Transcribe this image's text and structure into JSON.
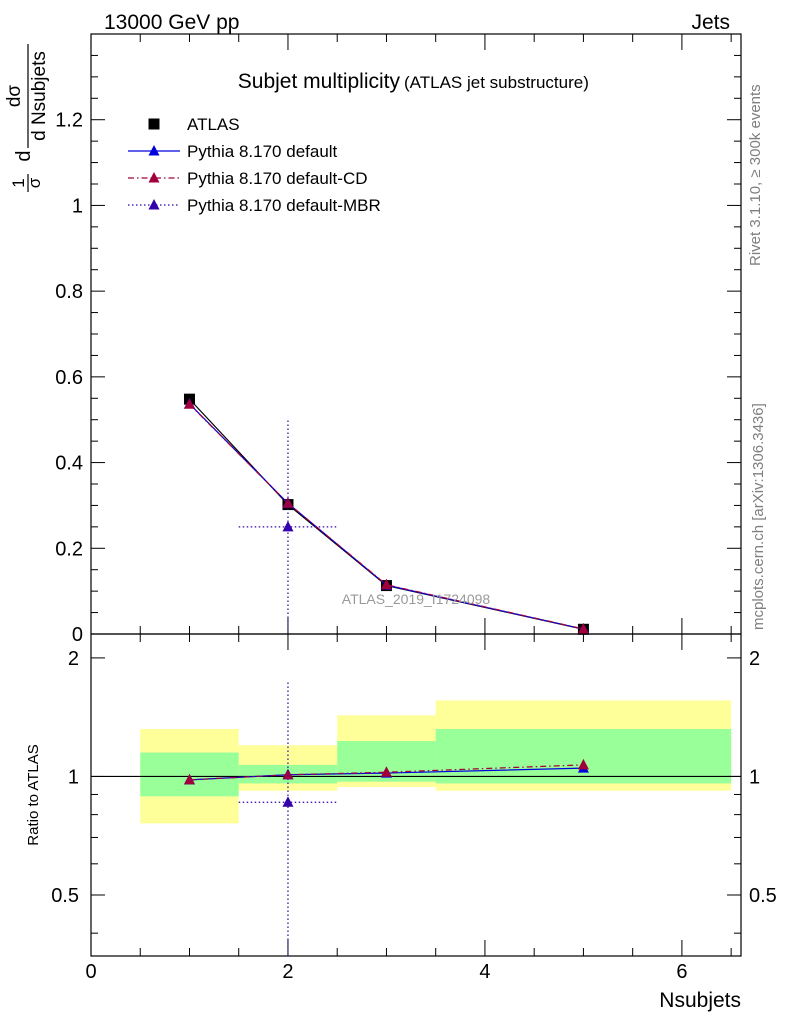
{
  "header": {
    "left": "13000 GeV pp",
    "right": "Jets"
  },
  "side": {
    "rivet": "Rivet 3.1.10, ≥ 300k events",
    "mcplots": "mcplots.cern.ch [arXiv:1306.3436]"
  },
  "watermark": "ATLAS_2019_I1724098",
  "chart_data": [
    {
      "type": "scatter",
      "title": "Subjet multiplicity",
      "subtitle": "(ATLAS jet substructure)",
      "ylabel": {
        "frac": "1",
        "frac_den": "σ",
        "d": "d",
        "num": "dσ",
        "den": "d Nsubjets"
      },
      "xlabel": "Nsubjets",
      "xlim": [
        0,
        6.6
      ],
      "ylim": [
        0,
        1.4
      ],
      "yticks": [
        0,
        0.2,
        0.4,
        0.6,
        0.8,
        1,
        1.2
      ],
      "ytick_labels": [
        "0",
        "0.2",
        "0.4",
        "0.6",
        "0.8",
        "1",
        "1.2"
      ],
      "legend_position": "top-left",
      "series": [
        {
          "name": "ATLAS",
          "marker": "square",
          "color": "#000000",
          "points": [
            {
              "x": 1,
              "y": 0.548
            },
            {
              "x": 2,
              "y": 0.302
            },
            {
              "x": 3,
              "y": 0.113
            },
            {
              "x": 5,
              "y": 0.011
            }
          ]
        },
        {
          "name": "Pythia 8.170 default",
          "marker": "triangle",
          "color": "#0000dd",
          "line": "solid",
          "points": [
            {
              "x": 1,
              "y": 0.537
            },
            {
              "x": 2,
              "y": 0.305
            },
            {
              "x": 3,
              "y": 0.114
            },
            {
              "x": 5,
              "y": 0.0115
            }
          ]
        },
        {
          "name": "Pythia 8.170 default-CD",
          "marker": "triangle",
          "color": "#a0003c",
          "line": "dashdot",
          "points": [
            {
              "x": 1,
              "y": 0.536
            },
            {
              "x": 2,
              "y": 0.305
            },
            {
              "x": 3,
              "y": 0.115
            },
            {
              "x": 5,
              "y": 0.0118
            }
          ]
        },
        {
          "name": "Pythia 8.170 default-MBR",
          "marker": "triangle",
          "color": "#3300aa",
          "line": "dotted",
          "points": [
            {
              "x": 2,
              "y": 0.25,
              "xerr": [
                1.5,
                2.5
              ],
              "yerr": [
                0.0,
                0.5
              ]
            }
          ]
        }
      ]
    },
    {
      "type": "scatter",
      "ylabel": "Ratio to ATLAS",
      "xlabel": "Nsubjets",
      "xlim": [
        0,
        6.6
      ],
      "ylim": [
        0.35,
        2.3
      ],
      "yticks": [
        0.5,
        1,
        2
      ],
      "ytick_labels": [
        "0.5",
        "1",
        "2"
      ],
      "xticks": [
        0,
        2,
        4,
        6
      ],
      "xtick_labels": [
        "0",
        "2",
        "4",
        "6"
      ],
      "bands": [
        {
          "x0": 0.5,
          "x1": 1.5,
          "inner": [
            0.89,
            1.15
          ],
          "outer": [
            0.76,
            1.32
          ]
        },
        {
          "x0": 1.5,
          "x1": 2.5,
          "inner": [
            0.96,
            1.07
          ],
          "outer": [
            0.92,
            1.2
          ]
        },
        {
          "x0": 2.5,
          "x1": 3.5,
          "inner": [
            0.97,
            1.23
          ],
          "outer": [
            0.94,
            1.43
          ]
        },
        {
          "x0": 3.5,
          "x1": 6.5,
          "inner": [
            0.96,
            1.32
          ],
          "outer": [
            0.92,
            1.56
          ]
        }
      ],
      "series": [
        {
          "name": "Pythia 8.170 default",
          "color": "#0000dd",
          "line": "solid",
          "points": [
            {
              "x": 1,
              "y": 0.98
            },
            {
              "x": 2,
              "y": 1.01
            },
            {
              "x": 3,
              "y": 1.02
            },
            {
              "x": 5,
              "y": 1.05
            }
          ]
        },
        {
          "name": "Pythia 8.170 default-CD",
          "color": "#a0003c",
          "line": "dashdot",
          "points": [
            {
              "x": 1,
              "y": 0.98
            },
            {
              "x": 2,
              "y": 1.01
            },
            {
              "x": 3,
              "y": 1.025
            },
            {
              "x": 5,
              "y": 1.07
            }
          ]
        },
        {
          "name": "Pythia 8.170 default-MBR",
          "color": "#3300aa",
          "line": "dotted",
          "points": [
            {
              "x": 2,
              "y": 0.86,
              "xerr": [
                1.5,
                2.5
              ],
              "yerr": [
                0.0,
                1.75
              ]
            }
          ]
        }
      ]
    }
  ]
}
